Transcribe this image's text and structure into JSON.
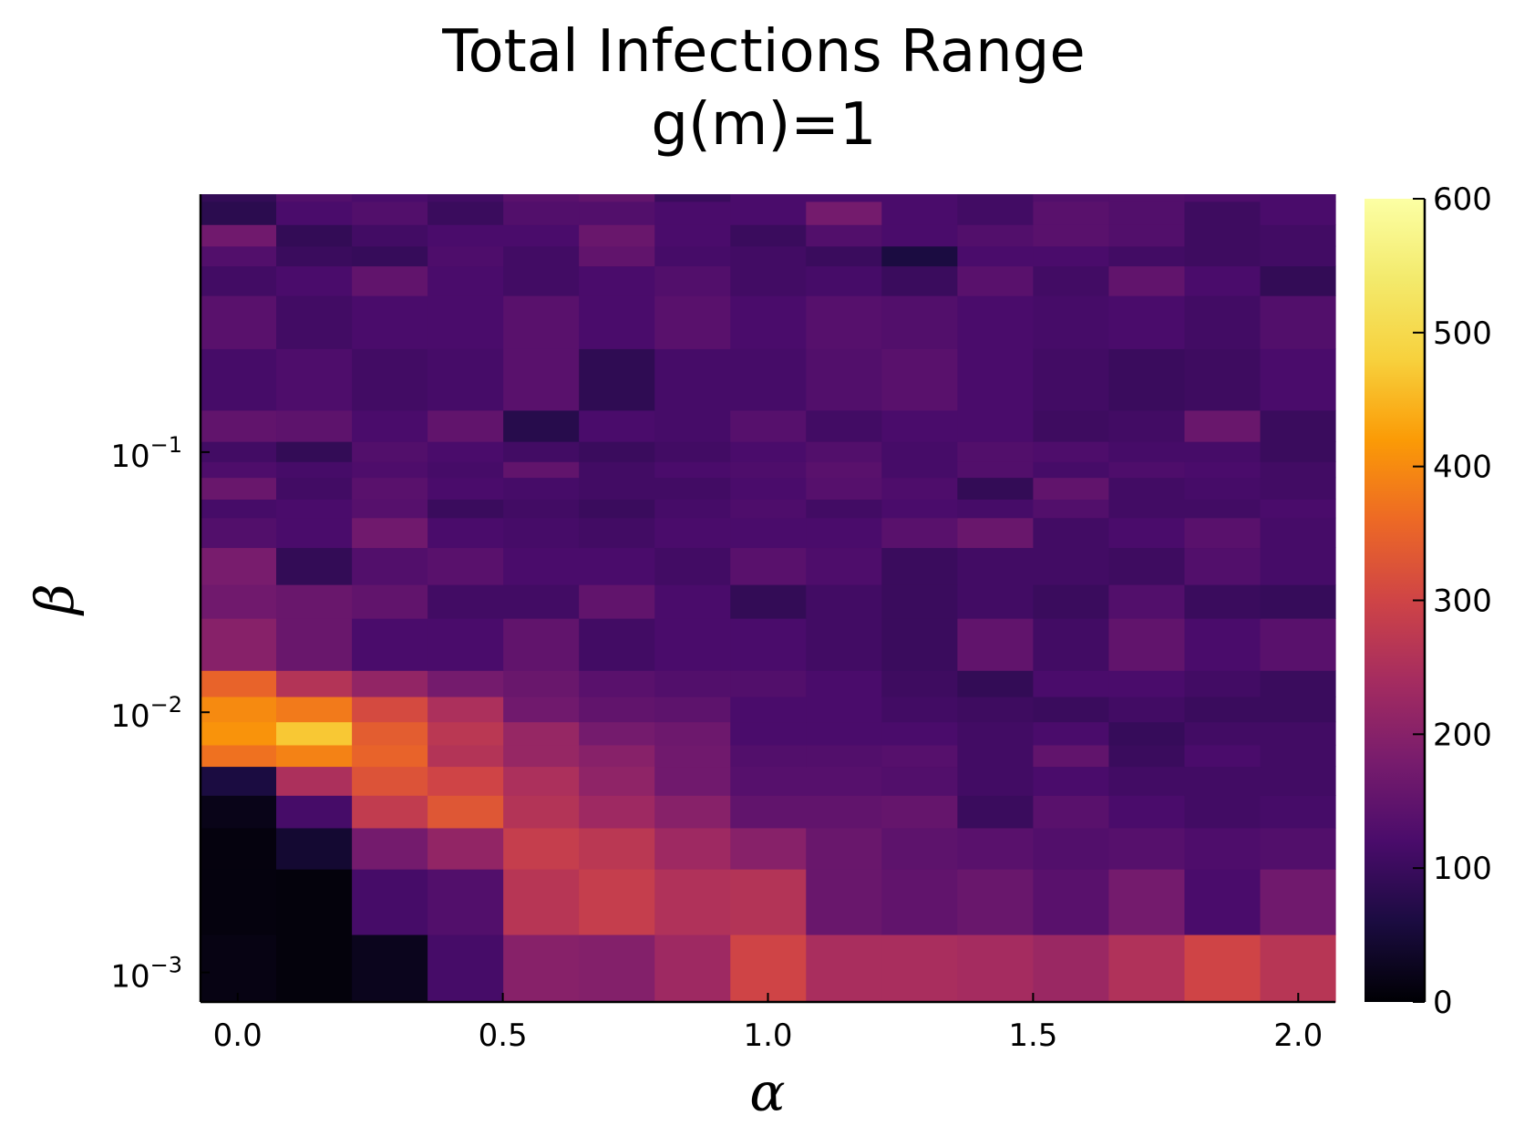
{
  "chart_data": {
    "type": "heatmap",
    "title_lines": [
      "Total Infections Range",
      "g(m)=1"
    ],
    "xlabel": "α",
    "ylabel": "β",
    "x_ticks": [
      {
        "value": 0.0,
        "label": "0.0"
      },
      {
        "value": 0.5,
        "label": "0.5"
      },
      {
        "value": 1.0,
        "label": "1.0"
      },
      {
        "value": 1.5,
        "label": "1.5"
      },
      {
        "value": 2.0,
        "label": "2.0"
      }
    ],
    "y_ticks": [
      {
        "value": 0.1,
        "base": "10",
        "exp": "−1"
      },
      {
        "value": 0.01,
        "base": "10",
        "exp": "−2"
      },
      {
        "value": 0.001,
        "base": "10",
        "exp": "−3"
      }
    ],
    "colorbar_ticks": [
      {
        "value": 0,
        "label": "0"
      },
      {
        "value": 100,
        "label": "100"
      },
      {
        "value": 200,
        "label": "200"
      },
      {
        "value": 300,
        "label": "300"
      },
      {
        "value": 400,
        "label": "400"
      },
      {
        "value": 500,
        "label": "500"
      },
      {
        "value": 600,
        "label": "600"
      }
    ],
    "x_scale": "linear",
    "y_scale": "log",
    "xlim": [
      -0.07,
      2.07
    ],
    "ylim": [
      0.00077,
      0.98
    ],
    "clim": [
      0,
      600
    ],
    "colormap": "inferno",
    "grid": false,
    "x_edges": [
      -0.07,
      0.0727,
      0.2155,
      0.3582,
      0.5009,
      0.6436,
      0.7864,
      0.9291,
      1.0718,
      1.2145,
      1.3573,
      1.5,
      1.6427,
      1.7855,
      1.9282,
      2.07
    ],
    "y_edges": [
      0.00077,
      0.0014,
      0.0025,
      0.0036,
      0.0048,
      0.0062,
      0.0075,
      0.0092,
      0.0115,
      0.0145,
      0.023,
      0.031,
      0.043,
      0.056,
      0.066,
      0.08,
      0.092,
      0.11,
      0.145,
      0.25,
      0.4,
      0.52,
      0.62,
      0.75,
      0.92,
      0.98
    ],
    "values": [
      [
        15,
        8,
        25,
        115,
        200,
        195,
        230,
        300,
        245,
        245,
        240,
        225,
        255,
        300,
        265
      ],
      [
        10,
        8,
        115,
        130,
        265,
        285,
        255,
        260,
        160,
        150,
        160,
        140,
        175,
        120,
        170
      ],
      [
        10,
        45,
        175,
        215,
        285,
        270,
        230,
        200,
        160,
        145,
        140,
        130,
        135,
        125,
        130
      ],
      [
        20,
        115,
        280,
        330,
        260,
        230,
        200,
        150,
        150,
        155,
        100,
        140,
        120,
        110,
        115
      ],
      [
        60,
        250,
        325,
        300,
        250,
        210,
        170,
        135,
        135,
        130,
        110,
        120,
        110,
        110,
        110
      ],
      [
        370,
        390,
        350,
        260,
        220,
        200,
        170,
        130,
        130,
        135,
        110,
        150,
        100,
        120,
        110
      ],
      [
        410,
        470,
        340,
        270,
        220,
        175,
        165,
        120,
        120,
        120,
        110,
        120,
        95,
        110,
        110
      ],
      [
        400,
        380,
        310,
        250,
        170,
        150,
        145,
        120,
        120,
        110,
        105,
        100,
        110,
        100,
        100
      ],
      [
        350,
        260,
        215,
        175,
        160,
        140,
        130,
        130,
        120,
        105,
        90,
        120,
        120,
        110,
        100
      ],
      [
        200,
        160,
        120,
        120,
        150,
        110,
        120,
        120,
        110,
        100,
        150,
        110,
        150,
        120,
        140
      ],
      [
        170,
        160,
        150,
        110,
        110,
        150,
        120,
        90,
        110,
        100,
        110,
        100,
        130,
        100,
        95
      ],
      [
        180,
        90,
        130,
        140,
        120,
        120,
        110,
        140,
        125,
        100,
        110,
        110,
        105,
        130,
        115
      ],
      [
        130,
        120,
        170,
        120,
        115,
        110,
        120,
        120,
        120,
        140,
        160,
        110,
        120,
        140,
        115
      ],
      [
        115,
        120,
        135,
        100,
        110,
        100,
        115,
        125,
        110,
        120,
        115,
        130,
        110,
        110,
        120
      ],
      [
        160,
        110,
        140,
        120,
        115,
        110,
        110,
        120,
        135,
        125,
        90,
        150,
        110,
        115,
        110
      ],
      [
        125,
        115,
        125,
        115,
        150,
        110,
        120,
        125,
        140,
        115,
        130,
        115,
        125,
        120,
        110
      ],
      [
        110,
        90,
        130,
        120,
        110,
        100,
        110,
        120,
        130,
        115,
        130,
        125,
        115,
        115,
        100
      ],
      [
        150,
        145,
        120,
        150,
        75,
        120,
        115,
        135,
        110,
        120,
        120,
        105,
        110,
        160,
        100
      ],
      [
        115,
        125,
        110,
        115,
        140,
        85,
        115,
        115,
        130,
        140,
        120,
        110,
        100,
        105,
        120
      ],
      [
        140,
        110,
        120,
        120,
        140,
        120,
        140,
        120,
        135,
        130,
        120,
        115,
        120,
        110,
        130
      ],
      [
        110,
        120,
        150,
        120,
        110,
        120,
        130,
        110,
        115,
        100,
        140,
        110,
        150,
        120,
        90
      ],
      [
        130,
        100,
        95,
        125,
        110,
        150,
        115,
        110,
        100,
        60,
        120,
        120,
        110,
        105,
        110
      ],
      [
        170,
        90,
        110,
        120,
        120,
        160,
        120,
        100,
        130,
        120,
        130,
        140,
        130,
        105,
        110
      ],
      [
        80,
        120,
        130,
        100,
        130,
        130,
        120,
        120,
        175,
        120,
        110,
        140,
        130,
        105,
        120
      ],
      [
        90,
        130,
        120,
        110,
        140,
        150,
        100,
        120,
        120,
        120,
        110,
        130,
        130,
        125,
        120
      ]
    ]
  }
}
